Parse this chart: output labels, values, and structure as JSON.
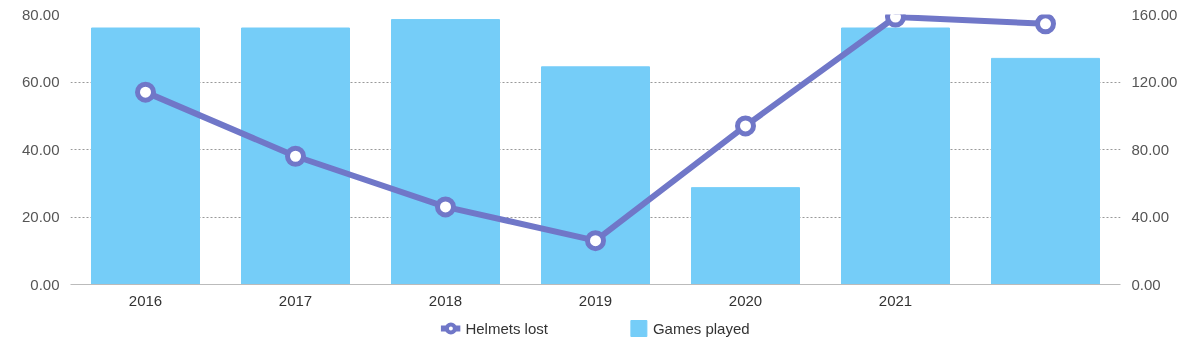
{
  "chart_data": {
    "type": "bar",
    "categories": [
      "2016",
      "2017",
      "2018",
      "2019",
      "2020",
      "2021",
      null
    ],
    "series": [
      {
        "name": "Games played",
        "color": "#75cdf8",
        "values": [
          76,
          76,
          78.5,
          64.5,
          28.7,
          76,
          67
        ]
      },
      {
        "name": "Helmets lost",
        "type": "line",
        "axis": "y2",
        "color": "#7077c8",
        "marker": "circle",
        "values": [
          114,
          76,
          46,
          26,
          94,
          158.5,
          154.5
        ]
      }
    ],
    "ylim": [
      0,
      80
    ],
    "yticks": [
      {
        "value": 0,
        "label": "0.00"
      },
      {
        "value": 20,
        "label": "20.00"
      },
      {
        "value": 40,
        "label": "40.00"
      },
      {
        "value": 60,
        "label": "60.00"
      },
      {
        "value": 80,
        "label": "80.00"
      }
    ],
    "y2lim": [
      0,
      160
    ],
    "y2ticks": [
      {
        "value": 0,
        "label": "0.00"
      },
      {
        "value": 40,
        "label": "40.00"
      },
      {
        "value": 80,
        "label": "80.00"
      },
      {
        "value": 120,
        "label": "120.00"
      },
      {
        "value": 160,
        "label": "160.00"
      }
    ],
    "grid": "y",
    "legend": "bottom"
  }
}
